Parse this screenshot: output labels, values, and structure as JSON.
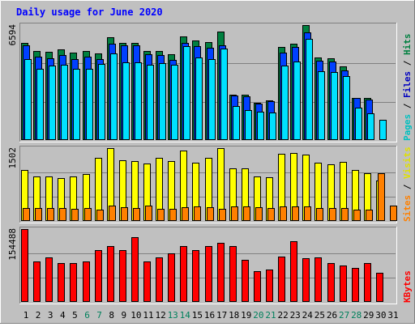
{
  "chart_data": {
    "type": "bar",
    "title": "Daily usage for June 2020",
    "colors": {
      "frame_bg": "#c0c0c0",
      "title": "#0000ff",
      "hits": "#008040",
      "files": "#0040ff",
      "pages": "#00e0ff",
      "visits": "#ffff00",
      "sites": "#ff8000",
      "kbytes": "#ff0000",
      "weekend_label": "#00805c",
      "weekday_label": "#000000"
    },
    "days": [
      "1",
      "2",
      "3",
      "4",
      "5",
      "6",
      "7",
      "8",
      "9",
      "10",
      "11",
      "12",
      "13",
      "14",
      "15",
      "16",
      "17",
      "18",
      "19",
      "20",
      "21",
      "22",
      "23",
      "24",
      "25",
      "26",
      "27",
      "28",
      "29",
      "30",
      "31"
    ],
    "weekend_days": [
      "6",
      "7",
      "13",
      "14",
      "20",
      "21",
      "27",
      "28"
    ],
    "panels": [
      {
        "id": "pages-files-hits",
        "max_label": "6594",
        "ymax": 6594,
        "legend": [
          {
            "text": "Pages",
            "color": "#00c0c0"
          },
          {
            "text": " / ",
            "color": "#000000"
          },
          {
            "text": "Files",
            "color": "#0000c0"
          },
          {
            "text": " / ",
            "color": "#000000"
          },
          {
            "text": "Hits",
            "color": "#008040"
          }
        ],
        "series": [
          {
            "name": "Hits",
            "color": "#008040",
            "values": [
              5570,
              5130,
              5070,
              5210,
              5000,
              5120,
              4990,
              5910,
              5570,
              5570,
              5130,
              5130,
              4920,
              5930,
              5690,
              5600,
              6240,
              2620,
              2580,
              2140,
              2290,
              5360,
              5510,
              6594,
              4720,
              4700,
              4210,
              2400,
              2400,
              0,
              0
            ]
          },
          {
            "name": "Files",
            "color": "#0040ff",
            "values": [
              5450,
              4790,
              4710,
              4870,
              4640,
              4800,
              4640,
              5540,
              5450,
              5450,
              4900,
              4870,
              4600,
              5550,
              5370,
              5300,
              5420,
              2550,
              2530,
              2090,
              2240,
              5020,
              5360,
              6190,
              4540,
              4510,
              3980,
              2400,
              2340,
              0,
              0
            ]
          },
          {
            "name": "Pages",
            "color": "#00e0ff",
            "values": [
              4650,
              4100,
              4290,
              4310,
              4090,
              4100,
              4370,
              4960,
              4460,
              4450,
              4330,
              4420,
              4300,
              5400,
              4730,
              4640,
              5270,
              1950,
              1700,
              1610,
              1570,
              4260,
              4520,
              5790,
              3960,
              3920,
              3660,
              1860,
              1530,
              1180,
              0
            ]
          }
        ]
      },
      {
        "id": "sites-visits",
        "max_label": "1502",
        "ymax": 1502,
        "legend": [
          {
            "text": "Sites",
            "color": "#ff8000"
          },
          {
            "text": " / ",
            "color": "#000000"
          },
          {
            "text": "Visits",
            "color": "#e0e000"
          }
        ],
        "series": [
          {
            "name": "Visits",
            "color": "#ffff00",
            "values": [
              1050,
              910,
              920,
              880,
              910,
              970,
              1300,
              1502,
              1260,
              1240,
              1190,
              1300,
              1230,
              1460,
              1200,
              1310,
              1500,
              1080,
              1080,
              920,
              900,
              1380,
              1410,
              1370,
              1200,
              1170,
              1210,
              1050,
              990,
              830,
              0
            ]
          },
          {
            "name": "Sites",
            "color": "#ff8000",
            "values": [
              270,
              270,
              270,
              270,
              250,
              270,
              240,
              310,
              290,
              270,
              320,
              250,
              250,
              290,
              300,
              290,
              250,
              300,
              300,
              290,
              260,
              300,
              300,
              300,
              270,
              270,
              260,
              240,
              240,
              990,
              320
            ]
          }
        ]
      },
      {
        "id": "kbytes",
        "max_label": "154488",
        "ymax": 154488,
        "legend": [
          {
            "text": "KBytes",
            "color": "#ff0000"
          }
        ],
        "series": [
          {
            "name": "KBytes",
            "color": "#ff0000",
            "values": [
              154488,
              85600,
              94230,
              82380,
              82380,
              85600,
              109160,
              118790,
              109160,
              136490,
              86570,
              94230,
              102360,
              118790,
              109160,
              118790,
              125430,
              118790,
              89790,
              65200,
              68600,
              96620,
              128400,
              93190,
              94230,
              82380,
              77760,
              71970,
              82380,
              61810,
              0
            ]
          }
        ]
      }
    ]
  }
}
